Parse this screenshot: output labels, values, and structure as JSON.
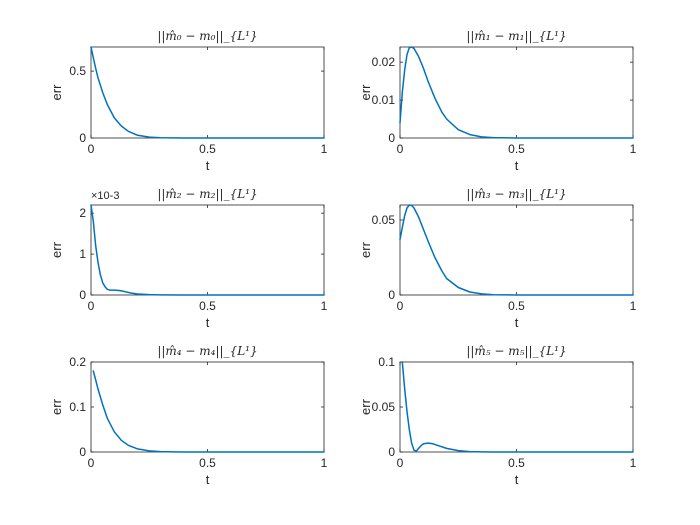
{
  "chart_data": [
    {
      "type": "line",
      "title": "||m̂₀ − m₀||_{L¹}",
      "xlabel": "t",
      "ylabel": "err",
      "xlim": [
        0,
        1
      ],
      "ylim": [
        0,
        0.68
      ],
      "xticks": [
        "0",
        "0.5",
        "1"
      ],
      "yticks": [
        {
          "v": 0,
          "label": "0"
        },
        {
          "v": 0.5,
          "label": "0.5"
        }
      ],
      "y_exponent": "",
      "series": [
        {
          "x": [
            0,
            0.01,
            0.02,
            0.03,
            0.05,
            0.07,
            0.1,
            0.13,
            0.16,
            0.2,
            0.25,
            0.3,
            0.35,
            0.4,
            0.5,
            0.6,
            0.8,
            1.0
          ],
          "y": [
            0.68,
            0.6,
            0.52,
            0.45,
            0.34,
            0.25,
            0.15,
            0.09,
            0.05,
            0.02,
            0.007,
            0.002,
            0.0005,
            0,
            0,
            0,
            0,
            0
          ]
        }
      ]
    },
    {
      "type": "line",
      "title": "||m̂₁ − m₁||_{L¹}",
      "xlabel": "t",
      "ylabel": "err",
      "xlim": [
        0,
        1
      ],
      "ylim": [
        0,
        0.024
      ],
      "xticks": [
        "0",
        "0.5",
        "1"
      ],
      "yticks": [
        {
          "v": 0,
          "label": "0"
        },
        {
          "v": 0.01,
          "label": "0.01"
        },
        {
          "v": 0.02,
          "label": "0.02"
        }
      ],
      "y_exponent": "",
      "series": [
        {
          "x": [
            0,
            0.01,
            0.02,
            0.03,
            0.04,
            0.05,
            0.06,
            0.08,
            0.1,
            0.12,
            0.15,
            0.18,
            0.2,
            0.25,
            0.3,
            0.35,
            0.4,
            0.5,
            0.6,
            0.8,
            1.0
          ],
          "y": [
            0.004,
            0.012,
            0.018,
            0.022,
            0.0238,
            0.024,
            0.0236,
            0.0215,
            0.0185,
            0.015,
            0.0105,
            0.0068,
            0.005,
            0.0022,
            0.0009,
            0.0003,
            0.0001,
            0,
            0,
            0,
            0
          ]
        }
      ]
    },
    {
      "type": "line",
      "title": "||m̂₂ − m₂||_{L¹}",
      "xlabel": "t",
      "ylabel": "err",
      "xlim": [
        0,
        1
      ],
      "ylim": [
        0,
        0.0022
      ],
      "xticks": [
        "0",
        "0.5",
        "1"
      ],
      "yticks": [
        {
          "v": 0,
          "label": "0"
        },
        {
          "v": 0.001,
          "label": "1"
        },
        {
          "v": 0.002,
          "label": "2"
        }
      ],
      "y_exponent": "×10-3",
      "series": [
        {
          "x": [
            0,
            0.01,
            0.02,
            0.03,
            0.04,
            0.05,
            0.06,
            0.07,
            0.08,
            0.1,
            0.12,
            0.14,
            0.17,
            0.2,
            0.25,
            0.3,
            0.4,
            0.5,
            0.6,
            0.8,
            1.0
          ],
          "y": [
            0.0022,
            0.0018,
            0.0012,
            0.0008,
            0.0005,
            0.0003,
            0.0002,
            0.00014,
            0.00012,
            0.00012,
            0.00011,
            9e-05,
            5e-05,
            2.5e-05,
            1e-05,
            3e-06,
            0,
            0,
            0,
            0,
            0
          ]
        }
      ]
    },
    {
      "type": "line",
      "title": "||m̂₃ − m₃||_{L¹}",
      "xlabel": "t",
      "ylabel": "err",
      "xlim": [
        0,
        1
      ],
      "ylim": [
        0,
        0.06
      ],
      "xticks": [
        "0",
        "0.5",
        "1"
      ],
      "yticks": [
        {
          "v": 0,
          "label": "0"
        },
        {
          "v": 0.05,
          "label": "0.05"
        }
      ],
      "y_exponent": "",
      "series": [
        {
          "x": [
            0,
            0.01,
            0.02,
            0.03,
            0.04,
            0.05,
            0.06,
            0.08,
            0.1,
            0.12,
            0.15,
            0.18,
            0.2,
            0.25,
            0.3,
            0.35,
            0.4,
            0.5,
            0.6,
            0.8,
            1.0
          ],
          "y": [
            0.037,
            0.045,
            0.053,
            0.058,
            0.06,
            0.0598,
            0.058,
            0.052,
            0.044,
            0.036,
            0.025,
            0.016,
            0.011,
            0.005,
            0.002,
            0.0007,
            0.0002,
            0,
            0,
            0,
            0
          ]
        }
      ]
    },
    {
      "type": "line",
      "title": "||m̂₄ − m₄||_{L¹}",
      "xlabel": "t",
      "ylabel": "err",
      "xlim": [
        0,
        1
      ],
      "ylim": [
        0,
        0.2
      ],
      "xticks": [
        "0",
        "0.5",
        "1"
      ],
      "yticks": [
        {
          "v": 0,
          "label": "0"
        },
        {
          "v": 0.1,
          "label": "0.1"
        },
        {
          "v": 0.2,
          "label": "0.2"
        }
      ],
      "y_exponent": "",
      "series": [
        {
          "x": [
            0.01,
            0.02,
            0.03,
            0.05,
            0.07,
            0.1,
            0.13,
            0.16,
            0.2,
            0.25,
            0.3,
            0.35,
            0.4,
            0.5,
            0.6,
            0.8,
            1.0
          ],
          "y": [
            0.18,
            0.16,
            0.14,
            0.105,
            0.075,
            0.045,
            0.026,
            0.015,
            0.007,
            0.0025,
            0.0008,
            0.0002,
            0,
            0,
            0,
            0,
            0
          ]
        }
      ]
    },
    {
      "type": "line",
      "title": "||m̂₅ − m₅||_{L¹}",
      "xlabel": "t",
      "ylabel": "err",
      "xlim": [
        0,
        1
      ],
      "ylim": [
        0,
        0.1
      ],
      "xticks": [
        "0",
        "0.5",
        "1"
      ],
      "yticks": [
        {
          "v": 0,
          "label": "0"
        },
        {
          "v": 0.05,
          "label": "0.05"
        },
        {
          "v": 0.1,
          "label": "0.1"
        }
      ],
      "y_exponent": "",
      "series": [
        {
          "x": [
            0.01,
            0.02,
            0.03,
            0.04,
            0.05,
            0.06,
            0.07,
            0.08,
            0.09,
            0.1,
            0.12,
            0.14,
            0.17,
            0.2,
            0.25,
            0.3,
            0.35,
            0.4,
            0.5,
            0.6,
            0.8,
            1.0
          ],
          "y": [
            0.1,
            0.07,
            0.045,
            0.025,
            0.01,
            0.002,
            0.001,
            0.004,
            0.007,
            0.009,
            0.01,
            0.0092,
            0.0065,
            0.004,
            0.0015,
            0.0005,
            0.0001,
            0,
            0,
            0,
            0,
            0
          ]
        }
      ]
    }
  ],
  "style": {
    "line_color": "#0072BD",
    "axis_color": "#262626",
    "background": "#ffffff"
  }
}
